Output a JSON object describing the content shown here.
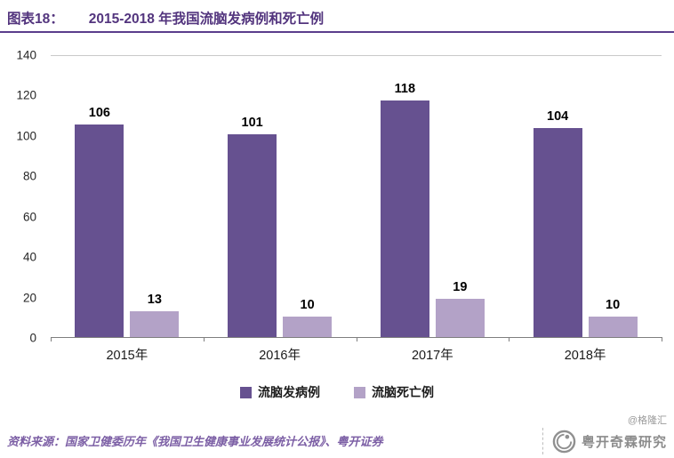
{
  "header": {
    "label": "图表18：",
    "title": "2015-2018 年我国流脑发病例和死亡例"
  },
  "colors": {
    "title": "#53357e",
    "rule": "#5b3e8c",
    "bar_cases": "#665190",
    "bar_deaths": "#b3a2c7",
    "source_text": "#7c5fa5"
  },
  "chart_data": {
    "type": "bar",
    "categories": [
      "2015年",
      "2016年",
      "2017年",
      "2018年"
    ],
    "series": [
      {
        "name": "流脑发病例",
        "color": "#665190",
        "values": [
          106,
          101,
          118,
          104
        ]
      },
      {
        "name": "流脑死亡例",
        "color": "#b3a2c7",
        "values": [
          13,
          10,
          19,
          10
        ]
      }
    ],
    "title": "2015-2018 年我国流脑发病例和死亡例",
    "xlabel": "",
    "ylabel": "",
    "ylim": [
      0,
      140
    ],
    "yticks": [
      0,
      20,
      40,
      60,
      80,
      100,
      120,
      140
    ],
    "grid": false,
    "legend_position": "bottom",
    "value_labels": true
  },
  "footer": {
    "source": "资料来源：国家卫健委历年《我国卫生健康事业发展统计公报》、粤开证券",
    "watermark": "@格隆汇",
    "brand": "粤开奇霖研究"
  }
}
